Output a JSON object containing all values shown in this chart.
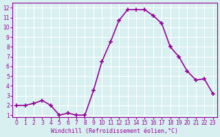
{
  "x": [
    0,
    1,
    2,
    3,
    4,
    5,
    6,
    7,
    8,
    9,
    10,
    11,
    12,
    13,
    14,
    15,
    16,
    17,
    18,
    19,
    20,
    21,
    22,
    23
  ],
  "y": [
    2.0,
    2.0,
    2.2,
    2.5,
    2.0,
    1.0,
    1.2,
    1.0,
    1.0,
    3.5,
    6.5,
    8.5,
    10.7,
    11.8,
    11.8,
    11.8,
    11.2,
    10.4,
    8.0,
    7.0,
    5.5,
    4.6,
    4.7,
    3.2
  ],
  "line_color": "#990099",
  "marker_color": "#990099",
  "bg_color": "#d8f0f0",
  "grid_color": "#ffffff",
  "xlabel": "Windchill (Refroidissement éolien,°C)",
  "xlabel_color": "#990099",
  "ylim": [
    0.8,
    12.5
  ],
  "xlim": [
    -0.5,
    23.5
  ],
  "yticks": [
    1,
    2,
    3,
    4,
    5,
    6,
    7,
    8,
    9,
    10,
    11,
    12
  ],
  "xticks": [
    0,
    1,
    2,
    3,
    4,
    5,
    6,
    7,
    8,
    9,
    10,
    11,
    12,
    13,
    14,
    15,
    16,
    17,
    18,
    19,
    20,
    21,
    22,
    23
  ],
  "tick_label_color": "#990099",
  "line_width": 1.2,
  "marker_size": 4
}
